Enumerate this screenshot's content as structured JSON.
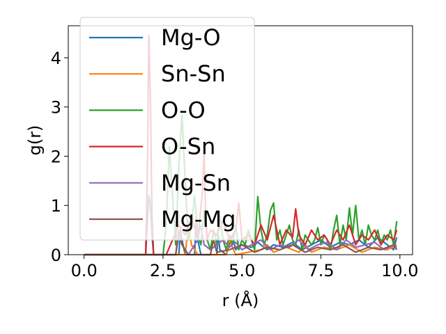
{
  "chart_data": {
    "type": "line",
    "title": "",
    "xlabel": "r (Å)",
    "ylabel": "g(r)",
    "xlim": [
      -0.5,
      10.4
    ],
    "ylim": [
      0,
      4.65
    ],
    "xticks": [
      0.0,
      2.5,
      5.0,
      7.5,
      10.0
    ],
    "xtick_labels": [
      "0.0",
      "2.5",
      "5.0",
      "7.5",
      "10.0"
    ],
    "yticks": [
      0,
      1,
      2,
      3,
      4
    ],
    "ytick_labels": [
      "0",
      "1",
      "2",
      "3",
      "4"
    ],
    "grid": false,
    "legend_position": "upper-left",
    "series": [
      {
        "name": "Mg-O",
        "color": "#1f77b4",
        "x": [
          0.0,
          1.95,
          2.0,
          2.05,
          2.1,
          2.15,
          2.2,
          2.25,
          2.4,
          3.0,
          3.05,
          3.1,
          3.2,
          3.5,
          3.55,
          3.6,
          3.7,
          4.2,
          4.25,
          4.3,
          4.5,
          4.6,
          4.7,
          4.8,
          5.0,
          5.3,
          5.5,
          5.8,
          6.0,
          6.3,
          6.6,
          6.9,
          7.2,
          7.5,
          7.8,
          8.1,
          8.4,
          8.7,
          9.0,
          9.3,
          9.6,
          9.8,
          9.9
        ],
        "y": [
          0.0,
          0.0,
          0.6,
          1.2,
          1.0,
          0.4,
          0.0,
          0.0,
          0.0,
          0.0,
          0.5,
          0.3,
          0.0,
          0.0,
          0.8,
          0.3,
          0.0,
          0.0,
          0.4,
          0.1,
          0.0,
          0.2,
          0.4,
          0.1,
          0.2,
          0.15,
          0.25,
          0.1,
          0.2,
          0.15,
          0.25,
          0.1,
          0.2,
          0.3,
          0.15,
          0.25,
          0.2,
          0.3,
          0.15,
          0.35,
          0.2,
          0.1,
          0.35
        ]
      },
      {
        "name": "Sn-Sn",
        "color": "#ff7f0e",
        "x": [
          0.0,
          3.2,
          3.3,
          3.4,
          3.6,
          4.5,
          4.6,
          4.8,
          5.6,
          5.8,
          6.0,
          6.4,
          6.8,
          7.0,
          7.2,
          7.6,
          8.0,
          8.4,
          8.8,
          9.2,
          9.6,
          9.9
        ],
        "y": [
          0.0,
          0.0,
          0.6,
          0.2,
          0.0,
          0.0,
          0.3,
          0.0,
          0.1,
          0.2,
          0.05,
          0.15,
          0.05,
          0.2,
          0.05,
          0.15,
          0.1,
          0.2,
          0.05,
          0.15,
          0.1,
          0.2
        ]
      },
      {
        "name": "O-O",
        "color": "#2ca02c",
        "x": [
          0.0,
          2.5,
          2.6,
          2.7,
          2.8,
          2.9,
          3.0,
          3.1,
          3.2,
          3.3,
          3.4,
          3.5,
          3.6,
          3.7,
          3.8,
          3.9,
          4.0,
          4.1,
          4.2,
          4.3,
          4.4,
          4.5,
          4.6,
          4.7,
          4.8,
          4.9,
          5.0,
          5.1,
          5.2,
          5.3,
          5.4,
          5.5,
          5.6,
          5.7,
          5.8,
          5.9,
          6.0,
          6.1,
          6.2,
          6.3,
          6.4,
          6.5,
          6.6,
          6.7,
          6.8,
          6.9,
          7.0,
          7.1,
          7.2,
          7.3,
          7.4,
          7.5,
          7.6,
          7.7,
          7.8,
          7.9,
          8.0,
          8.1,
          8.2,
          8.3,
          8.4,
          8.5,
          8.6,
          8.7,
          8.8,
          8.9,
          9.0,
          9.1,
          9.2,
          9.3,
          9.4,
          9.5,
          9.6,
          9.7,
          9.8,
          9.9
        ],
        "y": [
          0.0,
          0.0,
          0.6,
          2.2,
          1.2,
          0.2,
          1.8,
          2.85,
          1.5,
          0.3,
          0.6,
          1.2,
          0.4,
          0.2,
          0.9,
          0.3,
          0.1,
          0.5,
          0.2,
          0.8,
          0.3,
          0.1,
          0.4,
          0.2,
          0.6,
          0.1,
          0.3,
          0.2,
          0.5,
          0.3,
          0.1,
          1.18,
          0.5,
          0.2,
          0.4,
          0.9,
          1.05,
          0.3,
          0.5,
          0.2,
          0.4,
          0.6,
          0.3,
          0.2,
          0.5,
          0.1,
          0.4,
          0.3,
          0.2,
          0.3,
          0.55,
          0.2,
          0.4,
          0.3,
          0.1,
          0.5,
          0.8,
          0.2,
          0.6,
          0.3,
          0.95,
          0.4,
          1.0,
          0.3,
          0.5,
          0.2,
          0.6,
          0.4,
          0.3,
          0.5,
          0.2,
          0.4,
          0.3,
          0.5,
          0.2,
          0.68
        ]
      },
      {
        "name": "O-Sn",
        "color": "#d62728",
        "x": [
          0.0,
          1.95,
          2.0,
          2.05,
          2.1,
          2.15,
          2.2,
          2.25,
          2.6,
          2.8,
          3.0,
          3.2,
          3.4,
          3.6,
          3.75,
          3.8,
          3.85,
          3.9,
          4.0,
          4.2,
          4.4,
          4.6,
          4.8,
          4.9,
          5.0,
          5.2,
          5.4,
          5.6,
          5.8,
          6.0,
          6.2,
          6.4,
          6.6,
          6.7,
          6.8,
          7.0,
          7.2,
          7.4,
          7.6,
          7.8,
          8.0,
          8.2,
          8.4,
          8.6,
          8.8,
          9.0,
          9.2,
          9.4,
          9.6,
          9.8,
          9.9
        ],
        "y": [
          0.0,
          0.0,
          1.5,
          4.45,
          3.2,
          0.8,
          0.0,
          0.0,
          0.0,
          0.3,
          0.6,
          0.4,
          0.8,
          0.3,
          1.3,
          2.1,
          0.8,
          0.3,
          0.5,
          0.4,
          0.7,
          0.3,
          0.5,
          1.05,
          0.3,
          0.4,
          0.2,
          0.6,
          0.3,
          0.8,
          0.2,
          0.5,
          0.35,
          0.93,
          0.4,
          0.2,
          0.5,
          0.3,
          0.4,
          0.2,
          0.5,
          0.3,
          0.6,
          0.2,
          0.4,
          0.3,
          0.5,
          0.2,
          0.4,
          0.3,
          0.5
        ]
      },
      {
        "name": "Mg-Sn",
        "color": "#9467bd",
        "x": [
          0.0,
          2.9,
          3.0,
          3.1,
          3.3,
          3.6,
          3.7,
          3.8,
          4.0,
          4.4,
          4.6,
          4.8,
          5.0,
          5.3,
          5.6,
          5.9,
          6.2,
          6.5,
          6.8,
          7.1,
          7.4,
          7.7,
          8.0,
          8.3,
          8.6,
          8.9,
          9.2,
          9.5,
          9.8,
          9.9
        ],
        "y": [
          0.0,
          0.0,
          0.4,
          0.2,
          0.0,
          0.3,
          0.6,
          0.2,
          0.1,
          0.3,
          0.15,
          0.25,
          0.1,
          0.2,
          0.3,
          0.1,
          0.2,
          0.15,
          0.3,
          0.1,
          0.2,
          0.25,
          0.1,
          0.3,
          0.15,
          0.2,
          0.25,
          0.1,
          0.2,
          0.15
        ]
      },
      {
        "name": "Mg-Mg",
        "color": "#8c564b",
        "x": [
          0.0,
          2.9,
          3.0,
          3.1,
          3.3,
          4.0,
          4.1,
          4.2,
          4.6,
          5.0,
          5.4,
          5.8,
          6.2,
          6.6,
          7.0,
          7.4,
          7.8,
          8.2,
          8.6,
          9.0,
          9.4,
          9.8,
          9.9
        ],
        "y": [
          0.0,
          0.0,
          0.5,
          0.2,
          0.0,
          0.0,
          0.3,
          0.05,
          0.1,
          0.2,
          0.05,
          0.15,
          0.1,
          0.2,
          0.05,
          0.15,
          0.1,
          0.2,
          0.05,
          0.15,
          0.1,
          0.2,
          0.1
        ]
      }
    ]
  }
}
